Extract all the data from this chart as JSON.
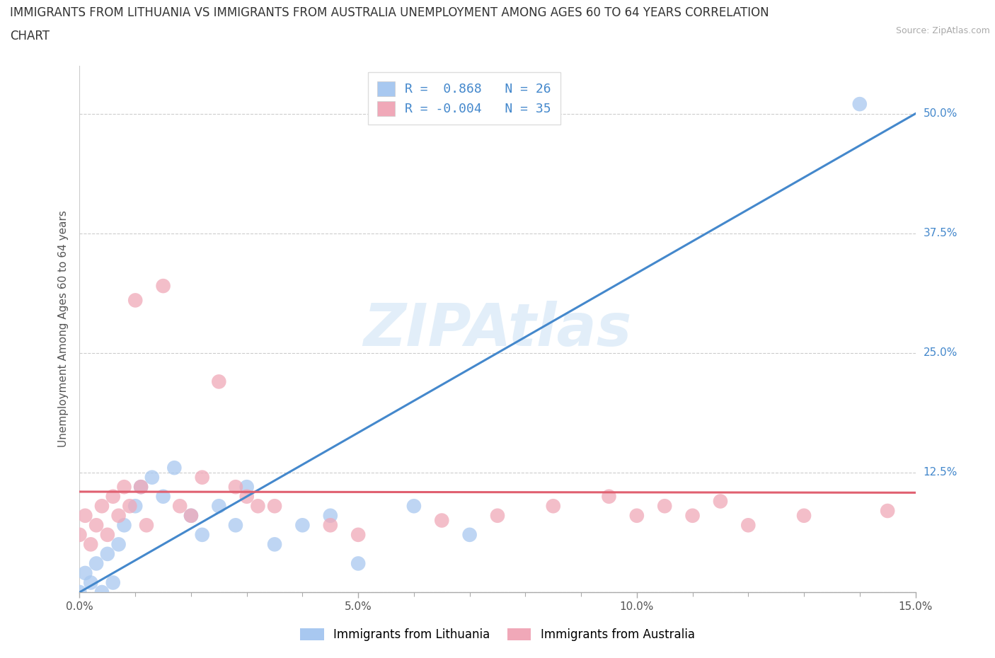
{
  "title_line1": "IMMIGRANTS FROM LITHUANIA VS IMMIGRANTS FROM AUSTRALIA UNEMPLOYMENT AMONG AGES 60 TO 64 YEARS CORRELATION",
  "title_line2": "CHART",
  "source": "Source: ZipAtlas.com",
  "ylabel": "Unemployment Among Ages 60 to 64 years",
  "xlim": [
    0.0,
    15.0
  ],
  "ylim": [
    0.0,
    55.0
  ],
  "ytick_vals": [
    0.0,
    12.5,
    25.0,
    37.5,
    50.0
  ],
  "watermark": "ZIPAtlas",
  "series1_color": "#a8c8f0",
  "series2_color": "#f0a8b8",
  "line1_color": "#4488cc",
  "line2_color": "#e06070",
  "background_color": "#ffffff",
  "grid_color": "#cccccc",
  "lithuania_x": [
    0.0,
    0.1,
    0.2,
    0.3,
    0.4,
    0.5,
    0.6,
    0.7,
    0.8,
    1.0,
    1.1,
    1.3,
    1.5,
    1.7,
    2.0,
    2.2,
    2.5,
    2.8,
    3.0,
    3.5,
    4.0,
    4.5,
    5.0,
    6.0,
    7.0,
    14.0
  ],
  "lithuania_y": [
    0.0,
    2.0,
    1.0,
    3.0,
    0.0,
    4.0,
    1.0,
    5.0,
    7.0,
    9.0,
    11.0,
    12.0,
    10.0,
    13.0,
    8.0,
    6.0,
    9.0,
    7.0,
    11.0,
    5.0,
    7.0,
    8.0,
    3.0,
    9.0,
    6.0,
    51.0
  ],
  "australia_x": [
    0.0,
    0.1,
    0.2,
    0.3,
    0.4,
    0.5,
    0.6,
    0.7,
    0.8,
    0.9,
    1.0,
    1.1,
    1.2,
    1.5,
    1.8,
    2.0,
    2.2,
    2.5,
    2.8,
    3.0,
    3.2,
    3.5,
    4.5,
    5.0,
    6.5,
    7.5,
    8.5,
    9.5,
    10.0,
    10.5,
    11.0,
    11.5,
    12.0,
    13.0,
    14.5
  ],
  "australia_y": [
    6.0,
    8.0,
    5.0,
    7.0,
    9.0,
    6.0,
    10.0,
    8.0,
    11.0,
    9.0,
    30.5,
    11.0,
    7.0,
    32.0,
    9.0,
    8.0,
    12.0,
    22.0,
    11.0,
    10.0,
    9.0,
    9.0,
    7.0,
    6.0,
    7.5,
    8.0,
    9.0,
    10.0,
    8.0,
    9.0,
    8.0,
    9.5,
    7.0,
    8.0,
    8.5
  ],
  "lith_line_x": [
    0.0,
    15.0
  ],
  "lith_line_y": [
    0.0,
    50.0
  ],
  "aus_line_x": [
    0.0,
    15.0
  ],
  "aus_line_y": [
    10.5,
    10.4
  ]
}
